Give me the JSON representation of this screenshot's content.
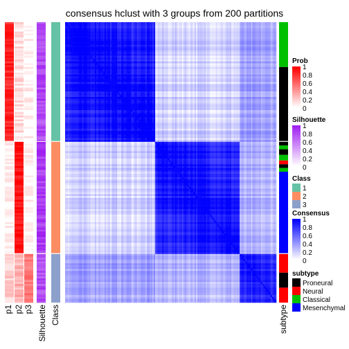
{
  "chart_data": {
    "type": "heatmap",
    "title": "consensus hclust with 3 groups from 200 partitions",
    "column_labels": {
      "prob": [
        "p1",
        "p2",
        "p3"
      ],
      "silhouette": "Silhouette",
      "class": "Class",
      "subtype": "subtype"
    },
    "groups": [
      {
        "class": "1",
        "n": 64,
        "p": [
          0.85,
          0.12,
          0.03
        ],
        "silhouette": 0.82,
        "color": "#66C2A5",
        "subtype_runs": [
          [
            "Classical",
            24
          ],
          [
            "Proneural",
            40
          ]
        ]
      },
      {
        "class": "2",
        "n": 60,
        "p": [
          0.03,
          0.95,
          0.02
        ],
        "silhouette": 0.88,
        "color": "#FC8D62",
        "subtype_runs": [
          [
            "Proneural",
            2
          ],
          [
            "Classical",
            2
          ],
          [
            "Proneural",
            3
          ],
          [
            "Classical",
            3
          ],
          [
            "Neural",
            2
          ],
          [
            "Proneural",
            2
          ],
          [
            "Classical",
            2
          ],
          [
            "Mesenchymal",
            44
          ]
        ]
      },
      {
        "class": "3",
        "n": 26,
        "p": [
          0.2,
          0.3,
          0.5
        ],
        "silhouette": 0.8,
        "color": "#8DA0CB",
        "subtype_runs": [
          [
            "Neural",
            10
          ],
          [
            "Proneural",
            8
          ],
          [
            "Neural",
            8
          ]
        ]
      }
    ],
    "consensus_block_means": [
      [
        0.88,
        0.18,
        0.35
      ],
      [
        0.18,
        0.85,
        0.28
      ],
      [
        0.35,
        0.28,
        0.72
      ]
    ],
    "legends": {
      "prob": {
        "title": "Prob",
        "ticks": [
          "1",
          "0.8",
          "0.6",
          "0.4",
          "0.2",
          "0"
        ],
        "color": "#FF0000"
      },
      "silhouette": {
        "title": "Silhouette",
        "ticks": [
          "1",
          "0.8",
          "0.6",
          "0.4",
          "0.2",
          "0"
        ],
        "color": "#A020F0"
      },
      "class": {
        "title": "Class",
        "items": [
          {
            "label": "1",
            "color": "#66C2A5"
          },
          {
            "label": "2",
            "color": "#FC8D62"
          },
          {
            "label": "3",
            "color": "#8DA0CB"
          }
        ]
      },
      "consensus": {
        "title": "Consensus",
        "ticks": [
          "1",
          "0.8",
          "0.6",
          "0.4",
          "0.2",
          "0"
        ],
        "color": "#0000FF"
      },
      "subtype": {
        "title": "subtype",
        "items": [
          {
            "label": "Proneural",
            "color": "#000000"
          },
          {
            "label": "Neural",
            "color": "#FF0000"
          },
          {
            "label": "Classical",
            "color": "#00C000"
          },
          {
            "label": "Mesenchymal",
            "color": "#0000FF"
          }
        ]
      }
    }
  }
}
